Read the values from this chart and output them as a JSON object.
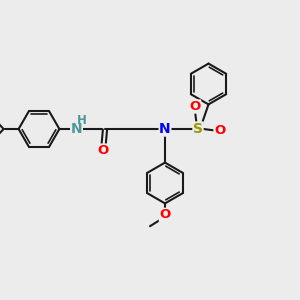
{
  "bg_color": "#ececec",
  "bond_color": "#1a1a1a",
  "N_color": "#0000ff",
  "NH_color": "#4d9999",
  "O_color": "#ff0000",
  "S_color": "#999900",
  "lw": 1.5,
  "lw_inner": 1.2,
  "figsize": [
    3.0,
    3.0
  ],
  "dpi": 100,
  "xlim": [
    0,
    10
  ],
  "ylim": [
    0,
    10
  ],
  "ring_r": 0.68,
  "font_size_atom": 9.5,
  "font_size_small": 8.5
}
